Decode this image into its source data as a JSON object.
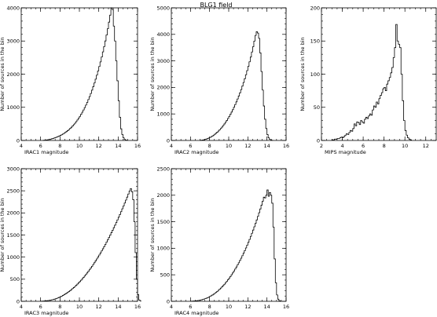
{
  "figure": {
    "title": "BLG1 field"
  },
  "chart_data": [
    {
      "type": "histogram",
      "xlabel": "IRAC1 magnitude",
      "ylabel": "Number of sources in the bin",
      "xlim": [
        4,
        16
      ],
      "ylim": [
        0,
        4000
      ],
      "xticks": [
        4,
        6,
        8,
        10,
        12,
        14,
        16
      ],
      "yticks": [
        0,
        1000,
        2000,
        3000,
        4000
      ],
      "xminor": 0.5,
      "yminor": 200,
      "bin_start": 6.25,
      "bin_width": 0.125,
      "values": [
        5,
        8,
        12,
        18,
        25,
        33,
        42,
        52,
        63,
        75,
        88,
        102,
        118,
        135,
        153,
        172,
        193,
        216,
        241,
        268,
        297,
        328,
        362,
        398,
        436,
        477,
        521,
        568,
        618,
        671,
        728,
        788,
        852,
        920,
        992,
        1068,
        1148,
        1233,
        1323,
        1418,
        1518,
        1623,
        1733,
        1849,
        1970,
        2097,
        2230,
        2370,
        2517,
        2671,
        2832,
        3001,
        3180,
        3370,
        3570,
        3780,
        4000,
        3950,
        3450,
        3000,
        2400,
        1800,
        1200,
        700,
        350,
        180,
        80,
        30,
        10,
        3
      ]
    },
    {
      "type": "histogram",
      "xlabel": "IRAC2 magnitude",
      "ylabel": "Number of sources in the bin",
      "xlim": [
        4,
        16
      ],
      "ylim": [
        0,
        5000
      ],
      "xticks": [
        4,
        6,
        8,
        10,
        12,
        14,
        16
      ],
      "yticks": [
        0,
        1000,
        2000,
        3000,
        4000,
        5000
      ],
      "xminor": 0.5,
      "yminor": 200,
      "bin_start": 7.0,
      "bin_width": 0.125,
      "values": [
        5,
        10,
        18,
        28,
        40,
        55,
        72,
        92,
        115,
        140,
        168,
        200,
        235,
        272,
        312,
        355,
        402,
        452,
        505,
        562,
        623,
        688,
        756,
        828,
        905,
        986,
        1071,
        1160,
        1254,
        1353,
        1456,
        1564,
        1677,
        1796,
        1920,
        2050,
        2186,
        2328,
        2477,
        2633,
        2796,
        2966,
        3146,
        3336,
        3536,
        3746,
        3960,
        4100,
        4050,
        3850,
        3300,
        2600,
        1900,
        1300,
        800,
        450,
        220,
        100,
        40,
        12,
        4
      ]
    },
    {
      "type": "histogram",
      "xlabel": "MIPS magnitude",
      "ylabel": "Number of sources in the bin",
      "xlim": [
        2,
        13
      ],
      "ylim": [
        0,
        200
      ],
      "xticks": [
        2,
        4,
        6,
        8,
        10,
        12
      ],
      "yticks": [
        0,
        50,
        100,
        150,
        200
      ],
      "xminor": 0.5,
      "yminor": 10,
      "bin_start": 3.0,
      "bin_width": 0.125,
      "values": [
        1,
        1,
        2,
        2,
        3,
        3,
        4,
        5,
        4,
        6,
        8,
        10,
        9,
        12,
        15,
        14,
        18,
        25,
        22,
        28,
        27,
        24,
        30,
        28,
        26,
        32,
        35,
        33,
        37,
        40,
        38,
        46,
        52,
        50,
        58,
        55,
        63,
        68,
        72,
        78,
        80,
        75,
        85,
        90,
        95,
        102,
        110,
        125,
        140,
        175,
        150,
        145,
        140,
        100,
        60,
        30,
        15,
        8,
        4,
        2,
        1
      ]
    },
    {
      "type": "histogram",
      "xlabel": "IRAC3 magnitude",
      "ylabel": "Number of sources in the bin",
      "xlim": [
        4,
        16
      ],
      "ylim": [
        0,
        3000
      ],
      "xticks": [
        4,
        6,
        8,
        10,
        12,
        14,
        16
      ],
      "yticks": [
        0,
        500,
        1000,
        1500,
        2000,
        2500,
        3000
      ],
      "xminor": 0.5,
      "yminor": 100,
      "bin_start": 6.0,
      "bin_width": 0.125,
      "values": [
        2,
        4,
        6,
        8,
        11,
        14,
        18,
        22,
        27,
        33,
        40,
        48,
        57,
        67,
        78,
        90,
        103,
        117,
        132,
        148,
        165,
        183,
        202,
        222,
        243,
        265,
        288,
        312,
        337,
        363,
        390,
        418,
        447,
        477,
        508,
        540,
        573,
        607,
        642,
        678,
        715,
        753,
        792,
        832,
        873,
        915,
        958,
        1002,
        1047,
        1093,
        1140,
        1188,
        1237,
        1287,
        1338,
        1390,
        1443,
        1497,
        1552,
        1608,
        1665,
        1723,
        1782,
        1842,
        1903,
        1965,
        2028,
        2092,
        2157,
        2223,
        2290,
        2358,
        2427,
        2497,
        2550,
        2480,
        2300,
        1800,
        1100,
        500,
        150,
        30,
        5
      ]
    },
    {
      "type": "histogram",
      "xlabel": "IRAC4 magnitude",
      "ylabel": "Number of sources in the bin",
      "xlim": [
        4,
        16
      ],
      "ylim": [
        0,
        2500
      ],
      "xticks": [
        4,
        6,
        8,
        10,
        12,
        14,
        16
      ],
      "yticks": [
        0,
        500,
        1000,
        1500,
        2000,
        2500
      ],
      "xminor": 0.5,
      "yminor": 100,
      "bin_start": 6.0,
      "bin_width": 0.125,
      "values": [
        2,
        3,
        5,
        7,
        9,
        12,
        15,
        19,
        24,
        29,
        35,
        42,
        50,
        59,
        69,
        80,
        92,
        105,
        119,
        134,
        150,
        168,
        187,
        207,
        228,
        250,
        273,
        297,
        322,
        349,
        377,
        406,
        436,
        468,
        501,
        535,
        571,
        608,
        646,
        686,
        727,
        770,
        814,
        860,
        907,
        956,
        1006,
        1058,
        1112,
        1167,
        1224,
        1283,
        1343,
        1405,
        1469,
        1534,
        1601,
        1670,
        1741,
        1813,
        1887,
        1963,
        1950,
        2000,
        2100,
        1980,
        2050,
        2000,
        1850,
        1400,
        800,
        350,
        120,
        40,
        10,
        3
      ]
    }
  ]
}
